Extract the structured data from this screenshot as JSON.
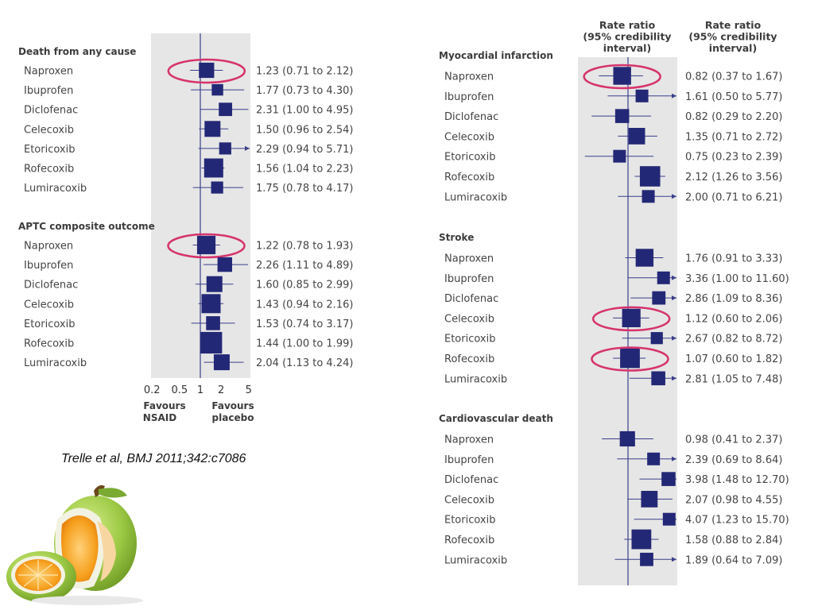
{
  "chart_data": [
    {
      "type": "forest",
      "x_scale": "log",
      "xlim": [
        0.2,
        5
      ],
      "x_ticks": [
        "0.2",
        "0.5",
        "1",
        "2",
        "5"
      ],
      "x_tick_values": [
        0.2,
        0.5,
        1,
        2,
        5
      ],
      "reference_line": 1,
      "favours_left": [
        "Favours",
        "NSAID"
      ],
      "favours_right": [
        "Favours",
        "placebo"
      ],
      "sections": [
        {
          "title": "Death from any cause",
          "rows": [
            {
              "drug": "Naproxen",
              "rr": 1.23,
              "lo": 0.71,
              "hi": 2.12,
              "label": "1.23 (0.71 to 2.12)",
              "weight": 0.7,
              "circled": true
            },
            {
              "drug": "Ibuprofen",
              "rr": 1.77,
              "lo": 0.73,
              "hi": 4.3,
              "label": "1.77 (0.73 to 4.30)",
              "weight": 0.4
            },
            {
              "drug": "Diclofenac",
              "rr": 2.31,
              "lo": 1.0,
              "hi": 4.95,
              "label": "2.31 (1.00 to 4.95)",
              "weight": 0.55
            },
            {
              "drug": "Celecoxib",
              "rr": 1.5,
              "lo": 0.96,
              "hi": 2.54,
              "label": "1.50 (0.96 to 2.54)",
              "weight": 0.75
            },
            {
              "drug": "Etoricoxib",
              "rr": 2.29,
              "lo": 0.94,
              "hi": 5.71,
              "label": "2.29 (0.94 to 5.71)",
              "weight": 0.45
            },
            {
              "drug": "Rofecoxib",
              "rr": 1.56,
              "lo": 1.04,
              "hi": 2.23,
              "label": "1.56 (1.04 to 2.23)",
              "weight": 1.0
            },
            {
              "drug": "Lumiracoxib",
              "rr": 1.75,
              "lo": 0.78,
              "hi": 4.17,
              "label": "1.75 (0.78 to 4.17)",
              "weight": 0.45
            }
          ]
        },
        {
          "title": "APTC composite outcome",
          "rows": [
            {
              "drug": "Naproxen",
              "rr": 1.22,
              "lo": 0.78,
              "hi": 1.93,
              "label": "1.22 (0.78 to 1.93)",
              "weight": 0.95,
              "circled": true
            },
            {
              "drug": "Ibuprofen",
              "rr": 2.26,
              "lo": 1.11,
              "hi": 4.89,
              "label": "2.26 (1.11 to 4.89)",
              "weight": 0.65
            },
            {
              "drug": "Diclofenac",
              "rr": 1.6,
              "lo": 0.85,
              "hi": 2.99,
              "label": "1.60 (0.85 to 2.99)",
              "weight": 0.75
            },
            {
              "drug": "Celecoxib",
              "rr": 1.43,
              "lo": 0.94,
              "hi": 2.16,
              "label": "1.43 (0.94 to 2.16)",
              "weight": 1.0
            },
            {
              "drug": "Etoricoxib",
              "rr": 1.53,
              "lo": 0.74,
              "hi": 3.17,
              "label": "1.53 (0.74 to 3.17)",
              "weight": 0.6
            },
            {
              "drug": "Rofecoxib",
              "rr": 1.44,
              "lo": 1.0,
              "hi": 1.99,
              "label": "1.44 (1.00 to 1.99)",
              "weight": 1.2
            },
            {
              "drug": "Lumiracoxib",
              "rr": 2.04,
              "lo": 1.13,
              "hi": 4.24,
              "label": "2.04 (1.13 to 4.24)",
              "weight": 0.75
            }
          ]
        }
      ]
    },
    {
      "type": "forest",
      "x_scale": "log",
      "xlim": [
        0.2,
        5
      ],
      "reference_line": 1,
      "column_headers": [
        "Rate ratio",
        "(95% credibility",
        "interval)"
      ],
      "column_headers_2": [
        "Rate ratio",
        "(95% credibility",
        "interval)"
      ],
      "sections": [
        {
          "title": "Myocardial infarction",
          "rows": [
            {
              "drug": "Naproxen",
              "rr": 0.82,
              "lo": 0.37,
              "hi": 1.67,
              "label": "0.82 (0.37 to 1.67)",
              "weight": 0.9,
              "circled": true
            },
            {
              "drug": "Ibuprofen",
              "rr": 1.61,
              "lo": 0.5,
              "hi": 5.77,
              "label": "1.61 (0.50 to 5.77)",
              "weight": 0.5
            },
            {
              "drug": "Diclofenac",
              "rr": 0.82,
              "lo": 0.29,
              "hi": 2.2,
              "label": "0.82 (0.29 to 2.20)",
              "weight": 0.6
            },
            {
              "drug": "Celecoxib",
              "rr": 1.35,
              "lo": 0.71,
              "hi": 2.72,
              "label": "1.35 (0.71 to 2.72)",
              "weight": 0.8
            },
            {
              "drug": "Etoricoxib",
              "rr": 0.75,
              "lo": 0.23,
              "hi": 2.39,
              "label": "0.75 (0.23 to 2.39)",
              "weight": 0.5
            },
            {
              "drug": "Rofecoxib",
              "rr": 2.12,
              "lo": 1.26,
              "hi": 3.56,
              "label": "2.12 (1.26 to 3.56)",
              "weight": 1.1
            },
            {
              "drug": "Lumiracoxib",
              "rr": 2.0,
              "lo": 0.71,
              "hi": 6.21,
              "label": "2.00 (0.71 to 6.21)",
              "weight": 0.5
            }
          ]
        },
        {
          "title": "Stroke",
          "rows": [
            {
              "drug": "Naproxen",
              "rr": 1.76,
              "lo": 0.91,
              "hi": 3.33,
              "label": "1.76 (0.91 to 3.33)",
              "weight": 0.9
            },
            {
              "drug": "Ibuprofen",
              "rr": 3.36,
              "lo": 1.0,
              "hi": 11.6,
              "label": "3.36 (1.00 to 11.60)",
              "weight": 0.5
            },
            {
              "drug": "Diclofenac",
              "rr": 2.86,
              "lo": 1.09,
              "hi": 8.36,
              "label": "2.86 (1.09 to 8.36)",
              "weight": 0.55
            },
            {
              "drug": "Celecoxib",
              "rr": 1.12,
              "lo": 0.6,
              "hi": 2.06,
              "label": "1.12 (0.60 to 2.06)",
              "weight": 0.95,
              "circled": true
            },
            {
              "drug": "Etoricoxib",
              "rr": 2.67,
              "lo": 0.82,
              "hi": 8.72,
              "label": "2.67 (0.82 to 8.72)",
              "weight": 0.45
            },
            {
              "drug": "Rofecoxib",
              "rr": 1.07,
              "lo": 0.6,
              "hi": 1.82,
              "label": "1.07 (0.60 to 1.82)",
              "weight": 1.05,
              "circled": true
            },
            {
              "drug": "Lumiracoxib",
              "rr": 2.81,
              "lo": 1.05,
              "hi": 7.48,
              "label": "2.81 (1.05 to 7.48)",
              "weight": 0.6
            }
          ]
        },
        {
          "title": "Cardiovascular death",
          "rows": [
            {
              "drug": "Naproxen",
              "rr": 0.98,
              "lo": 0.41,
              "hi": 2.37,
              "label": "0.98 (0.41 to 2.37)",
              "weight": 0.7
            },
            {
              "drug": "Ibuprofen",
              "rr": 2.39,
              "lo": 0.69,
              "hi": 8.64,
              "label": "2.39 (0.69 to 8.64)",
              "weight": 0.5
            },
            {
              "drug": "Diclofenac",
              "rr": 3.98,
              "lo": 1.48,
              "hi": 12.7,
              "label": "3.98 (1.48 to 12.70)",
              "weight": 0.6
            },
            {
              "drug": "Celecoxib",
              "rr": 2.07,
              "lo": 0.98,
              "hi": 4.55,
              "label": "2.07 (0.98 to 4.55)",
              "weight": 0.8
            },
            {
              "drug": "Etoricoxib",
              "rr": 4.07,
              "lo": 1.23,
              "hi": 15.7,
              "label": "4.07 (1.23 to 15.70)",
              "weight": 0.5
            },
            {
              "drug": "Rofecoxib",
              "rr": 1.58,
              "lo": 0.88,
              "hi": 2.84,
              "label": "1.58 (0.88 to 2.84)",
              "weight": 1.05
            },
            {
              "drug": "Lumiracoxib",
              "rr": 1.89,
              "lo": 0.64,
              "hi": 7.09,
              "label": "1.89 (0.64 to 7.09)",
              "weight": 0.55
            }
          ]
        }
      ]
    }
  ],
  "citation": "Trelle et al, BMJ 2011;342:c7086",
  "colors": {
    "panel": "#e6e6e6",
    "marker": "#232876",
    "circle": "#d6336c",
    "line": "#3a3f8a"
  },
  "decor": {
    "image": "orange-apple-photo"
  }
}
